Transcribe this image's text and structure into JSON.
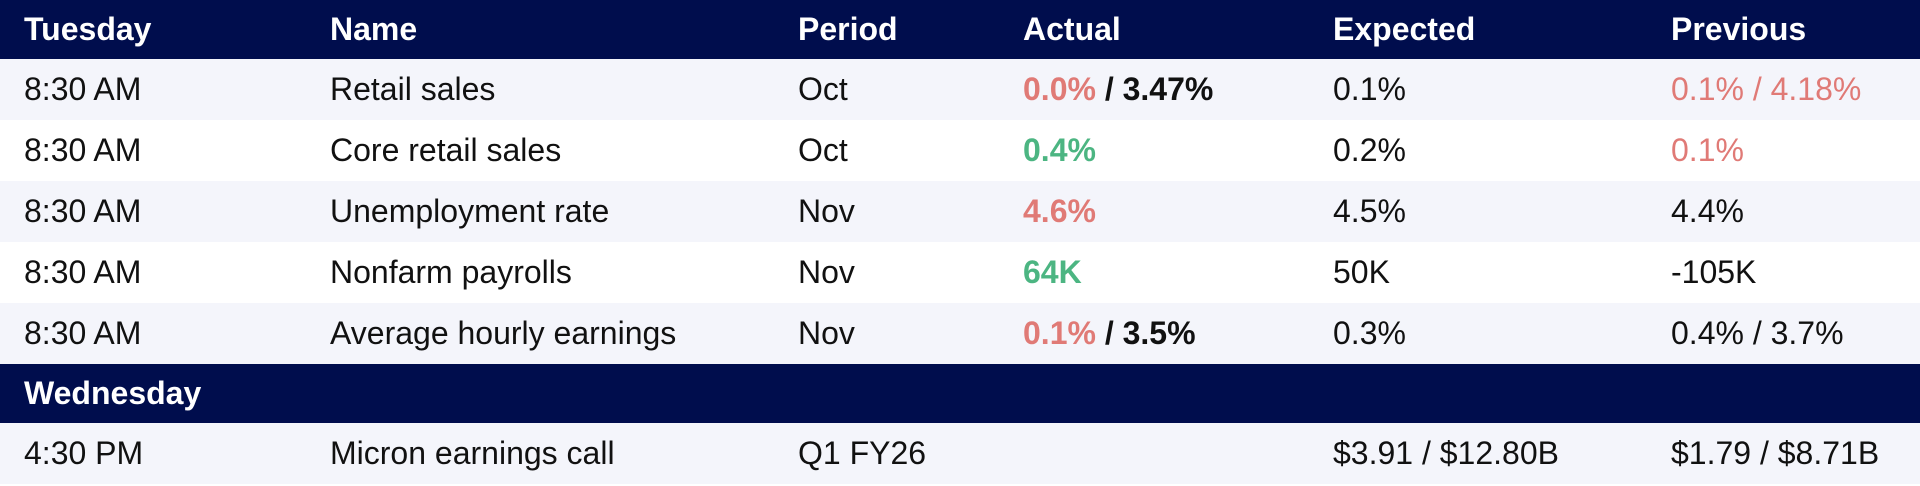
{
  "header": {
    "day": "Tuesday",
    "name": "Name",
    "period": "Period",
    "actual": "Actual",
    "expected": "Expected",
    "previous": "Previous"
  },
  "tuesday": [
    {
      "time": "8:30 AM",
      "name": "Retail sales",
      "period": "Oct",
      "actual_a": "0.0%",
      "actual_sep": " / ",
      "actual_b": "3.47%",
      "expected": "0.1%",
      "previous": "0.1% / 4.18%"
    },
    {
      "time": "8:30 AM",
      "name": "Core retail sales",
      "period": "Oct",
      "actual_a": "0.4%",
      "expected": "0.2%",
      "previous": "0.1%"
    },
    {
      "time": "8:30 AM",
      "name": "Unemployment rate",
      "period": "Nov",
      "actual_a": "4.6%",
      "expected": "4.5%",
      "previous": "4.4%"
    },
    {
      "time": "8:30 AM",
      "name": "Nonfarm payrolls",
      "period": "Nov",
      "actual_a": "64K",
      "expected": "50K",
      "previous": "-105K"
    },
    {
      "time": "8:30 AM",
      "name": "Average hourly earnings",
      "period": "Nov",
      "actual_a": "0.1%",
      "actual_sep": " / ",
      "actual_b": "3.5%",
      "expected": "0.3%",
      "previous": "0.4% / 3.7%"
    }
  ],
  "wednesday_header": {
    "day": "Wednesday"
  },
  "wednesday": [
    {
      "time": "4:30 PM",
      "name": "Micron earnings call",
      "period": "Q1 FY26",
      "actual": "",
      "expected": "$3.91 / $12.80B",
      "previous": "$1.79 / $8.71B"
    }
  ],
  "colors": {
    "header_bg": "#000d4d",
    "negative": "#e07a76",
    "positive": "#4cb582",
    "row_alt_bg": "#f4f5fb"
  }
}
